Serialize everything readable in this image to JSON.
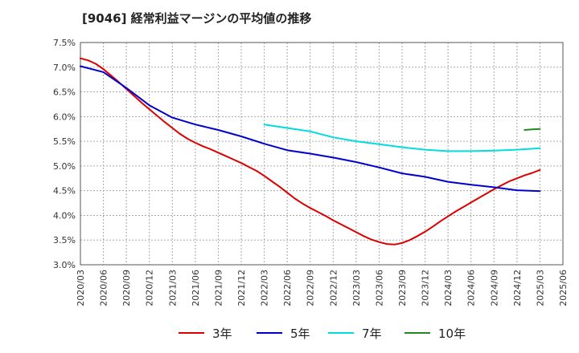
{
  "title": "[9046]  経常利益マージンの平均値の推移",
  "chart_data": {
    "type": "line",
    "title": "[9046]  経常利益マージンの平均値の推移",
    "xlabel": "",
    "ylabel": "",
    "grid": true,
    "legend_position": "bottom",
    "x_ticks": [
      "2020/03",
      "2020/06",
      "2020/09",
      "2020/12",
      "2021/03",
      "2021/06",
      "2021/09",
      "2021/12",
      "2022/03",
      "2022/06",
      "2022/09",
      "2022/12",
      "2023/03",
      "2023/06",
      "2023/09",
      "2023/12",
      "2024/03",
      "2024/06",
      "2024/09",
      "2024/12",
      "2025/03",
      "2025/06"
    ],
    "y_ticks": [
      "3.0%",
      "3.5%",
      "4.0%",
      "4.5%",
      "5.0%",
      "5.5%",
      "6.0%",
      "6.5%",
      "7.0%",
      "7.5%"
    ],
    "ylim": [
      3.0,
      7.5
    ],
    "series": [
      {
        "name": "3年",
        "color": "#dd0000",
        "x": [
          "2020/03",
          "2020/04",
          "2020/05",
          "2020/06",
          "2020/07",
          "2020/08",
          "2020/09",
          "2020/10",
          "2020/11",
          "2020/12",
          "2021/01",
          "2021/02",
          "2021/03",
          "2021/04",
          "2021/05",
          "2021/06",
          "2021/07",
          "2021/08",
          "2021/09",
          "2021/10",
          "2021/11",
          "2021/12",
          "2022/01",
          "2022/02",
          "2022/03",
          "2022/04",
          "2022/05",
          "2022/06",
          "2022/07",
          "2022/08",
          "2022/09",
          "2022/10",
          "2022/11",
          "2022/12",
          "2023/01",
          "2023/02",
          "2023/03",
          "2023/04",
          "2023/05",
          "2023/06",
          "2023/07",
          "2023/08",
          "2023/09",
          "2023/10",
          "2023/11",
          "2023/12",
          "2024/01",
          "2024/02",
          "2024/03",
          "2024/04",
          "2024/05",
          "2024/06",
          "2024/07",
          "2024/08",
          "2024/09",
          "2024/10",
          "2024/11",
          "2024/12",
          "2025/01",
          "2025/02",
          "2025/03"
        ],
        "values": [
          7.18,
          7.14,
          7.07,
          6.96,
          6.83,
          6.7,
          6.56,
          6.42,
          6.28,
          6.15,
          6.02,
          5.89,
          5.77,
          5.65,
          5.55,
          5.47,
          5.4,
          5.34,
          5.27,
          5.2,
          5.13,
          5.06,
          4.98,
          4.9,
          4.8,
          4.69,
          4.58,
          4.46,
          4.34,
          4.24,
          4.15,
          4.07,
          3.99,
          3.9,
          3.82,
          3.74,
          3.66,
          3.58,
          3.51,
          3.46,
          3.42,
          3.41,
          3.44,
          3.5,
          3.58,
          3.67,
          3.77,
          3.88,
          3.98,
          4.08,
          4.17,
          4.26,
          4.35,
          4.44,
          4.53,
          4.61,
          4.69,
          4.75,
          4.81,
          4.86,
          4.92
        ]
      },
      {
        "name": "5年",
        "color": "#0000cc",
        "x": [
          "2020/03",
          "2020/06",
          "2020/09",
          "2020/12",
          "2021/03",
          "2021/06",
          "2021/09",
          "2021/12",
          "2022/03",
          "2022/06",
          "2022/09",
          "2022/12",
          "2023/03",
          "2023/06",
          "2023/09",
          "2023/12",
          "2024/03",
          "2024/06",
          "2024/09",
          "2024/12",
          "2025/03"
        ],
        "values": [
          7.02,
          6.9,
          6.58,
          6.23,
          5.98,
          5.84,
          5.73,
          5.6,
          5.45,
          5.32,
          5.25,
          5.17,
          5.08,
          4.97,
          4.85,
          4.78,
          4.68,
          4.62,
          4.57,
          4.51,
          4.49
        ]
      },
      {
        "name": "7年",
        "color": "#00dddd",
        "x": [
          "2022/03",
          "2022/06",
          "2022/09",
          "2022/12",
          "2023/03",
          "2023/06",
          "2023/09",
          "2023/12",
          "2024/03",
          "2024/06",
          "2024/09",
          "2024/12",
          "2025/03"
        ],
        "values": [
          5.84,
          5.77,
          5.7,
          5.58,
          5.5,
          5.44,
          5.38,
          5.33,
          5.3,
          5.3,
          5.31,
          5.33,
          5.36
        ]
      },
      {
        "name": "10年",
        "color": "#228822",
        "x": [
          "2025/01",
          "2025/02",
          "2025/03"
        ],
        "values": [
          5.73,
          5.74,
          5.75
        ]
      }
    ]
  }
}
